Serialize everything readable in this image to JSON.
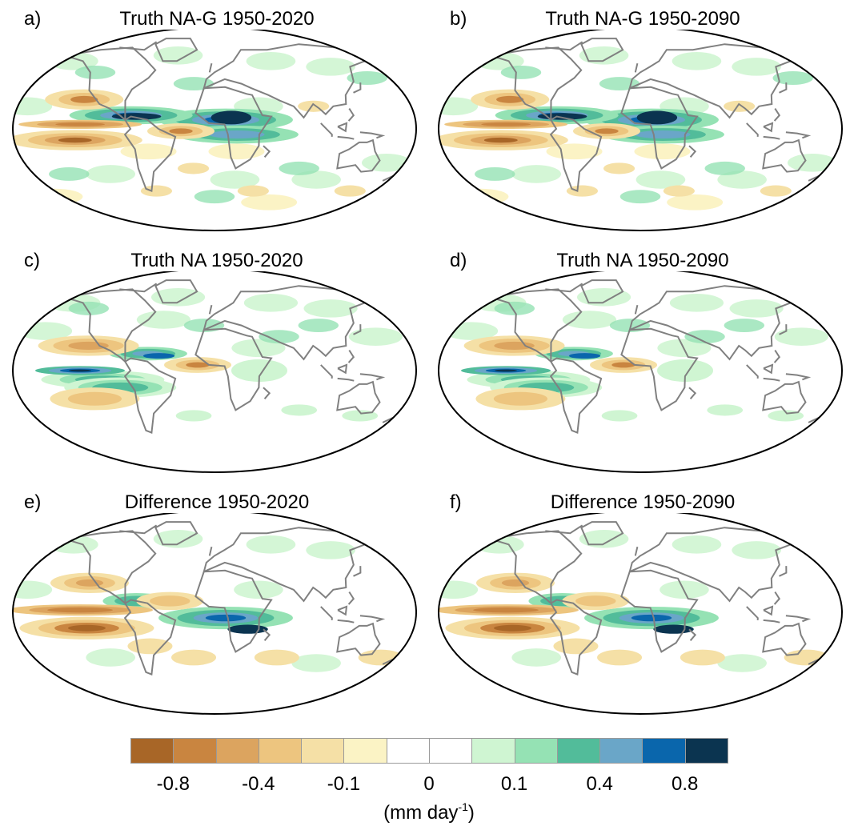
{
  "panels": [
    {
      "letter": "a)",
      "title": "Truth NA-G 1950-2020",
      "pattern": "nag"
    },
    {
      "letter": "b)",
      "title": "Truth NA-G 1950-2090",
      "pattern": "nag"
    },
    {
      "letter": "c)",
      "title": "Truth NA 1950-2020",
      "pattern": "na"
    },
    {
      "letter": "d)",
      "title": "Truth NA 1950-2090",
      "pattern": "na"
    },
    {
      "letter": "e)",
      "title": "Difference 1950-2020",
      "pattern": "diff"
    },
    {
      "letter": "f)",
      "title": "Difference 1950-2090",
      "pattern": "diff"
    }
  ],
  "colorbar": {
    "colors": [
      "#a86627",
      "#c98540",
      "#dca45f",
      "#edc57f",
      "#f5e0a6",
      "#fbf3c5",
      "#ffffff",
      "#ffffff",
      "#cff5d2",
      "#95e2b4",
      "#52bc9a",
      "#6aa6c8",
      "#0a66ac",
      "#0b3450"
    ],
    "tick_labels": [
      "-0.8",
      "-0.4",
      "-0.1",
      "0",
      "0.1",
      "0.4",
      "0.8"
    ],
    "units_prefix": "(mm day",
    "units_exp": "-1",
    "units_suffix": ")"
  }
}
